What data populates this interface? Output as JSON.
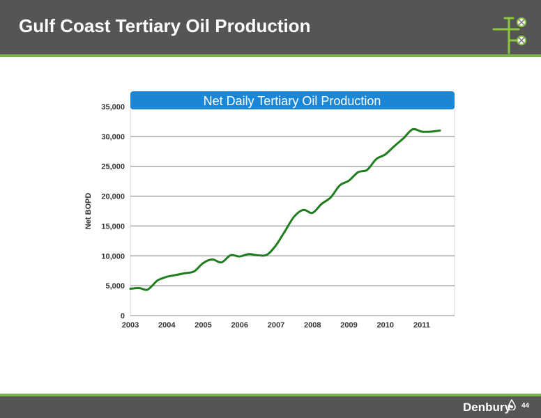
{
  "header": {
    "title": "Gulf Coast Tertiary Oil Production",
    "logo_icon": "wellhead-valve-icon"
  },
  "footer": {
    "brand": "Denbury",
    "page_number": "44",
    "brand_icon": "oil-drop-icon"
  },
  "colors": {
    "header_bg": "#555555",
    "accent_green": "#7ab648",
    "line_green": "#1e7d1e",
    "title_banner": "#1c86d6"
  },
  "chart_data": {
    "type": "line",
    "title": "Net Daily Tertiary Oil Production",
    "ylabel": "Net BOPD",
    "xlabel": "",
    "xlim": [
      2003,
      2011.9
    ],
    "ylim": [
      0,
      35000
    ],
    "x_ticks": [
      2003,
      2004,
      2005,
      2006,
      2007,
      2008,
      2009,
      2010,
      2011
    ],
    "y_ticks": [
      0,
      5000,
      10000,
      15000,
      20000,
      25000,
      30000,
      35000
    ],
    "x_tick_labels": [
      "2003",
      "2004",
      "2005",
      "2006",
      "2007",
      "2008",
      "2009",
      "2010",
      "2011"
    ],
    "y_tick_labels": [
      "0",
      "5,000",
      "10,000",
      "15,000",
      "20,000",
      "25,000",
      "30,000",
      "35,000"
    ],
    "grid": "horizontal",
    "series": [
      {
        "name": "",
        "color": "#1e7d1e",
        "x": [
          2003.0,
          2003.25,
          2003.45,
          2003.6,
          2003.75,
          2004.0,
          2004.25,
          2004.5,
          2004.75,
          2005.0,
          2005.25,
          2005.5,
          2005.75,
          2006.0,
          2006.25,
          2006.5,
          2006.75,
          2007.0,
          2007.25,
          2007.5,
          2007.75,
          2008.0,
          2008.25,
          2008.5,
          2008.75,
          2009.0,
          2009.25,
          2009.5,
          2009.75,
          2010.0,
          2010.25,
          2010.5,
          2010.75,
          2011.0,
          2011.25,
          2011.5
        ],
        "y": [
          4500,
          4600,
          4300,
          5000,
          5900,
          6500,
          6800,
          7100,
          7400,
          8800,
          9400,
          8900,
          10100,
          9900,
          10300,
          10100,
          10200,
          11800,
          14200,
          16600,
          17700,
          17200,
          18700,
          19800,
          21800,
          22600,
          24000,
          24400,
          26200,
          27000,
          28400,
          29700,
          31200,
          30800,
          30800,
          31000
        ]
      }
    ]
  }
}
